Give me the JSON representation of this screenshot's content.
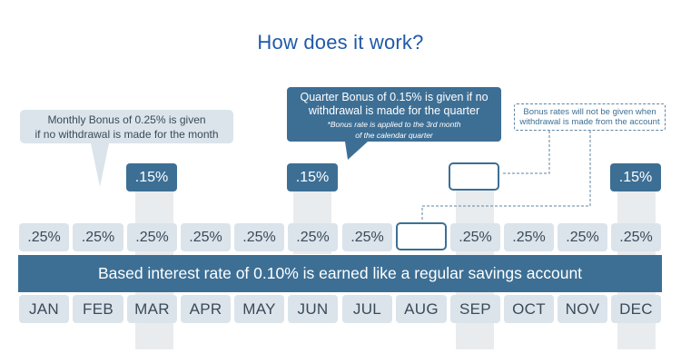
{
  "title": "How does it work?",
  "months": [
    "JAN",
    "FEB",
    "MAR",
    "APR",
    "MAY",
    "JUN",
    "JUL",
    "AUG",
    "SEP",
    "OCT",
    "NOV",
    "DEC"
  ],
  "monthly_rates": [
    ".25%",
    ".25%",
    ".25%",
    ".25%",
    ".25%",
    ".25%",
    ".25%",
    "",
    ".25%",
    ".25%",
    ".25%",
    ".25%"
  ],
  "quarterly_bonus": {
    "mar": ".15%",
    "jun": ".15%",
    "sep": "",
    "dec": ".15%"
  },
  "base_band_text": "Based interest rate of 0.10% is earned like a regular savings account",
  "callouts": {
    "monthly_line1": "Monthly Bonus of 0.25% is given",
    "monthly_line2": "if no withdrawal is made for the month",
    "quarter_line1": "Quarter Bonus of 0.15% is given if no",
    "quarter_line2": "withdrawal is made for the quarter",
    "quarter_note_line1": "*Bonus rate is applied to the 3rd month",
    "quarter_note_line2": "of the calendar quarter",
    "withdrawal_line1": "Bonus rates will not be given when",
    "withdrawal_line2": "withdrawal is made from the account"
  },
  "colors": {
    "title_blue": "#1f5aa8",
    "dark_blue": "#3d6f95",
    "light_blue": "#dbe4eb",
    "strip_grey": "#e9ecee",
    "text_dark": "#3a4a58"
  }
}
